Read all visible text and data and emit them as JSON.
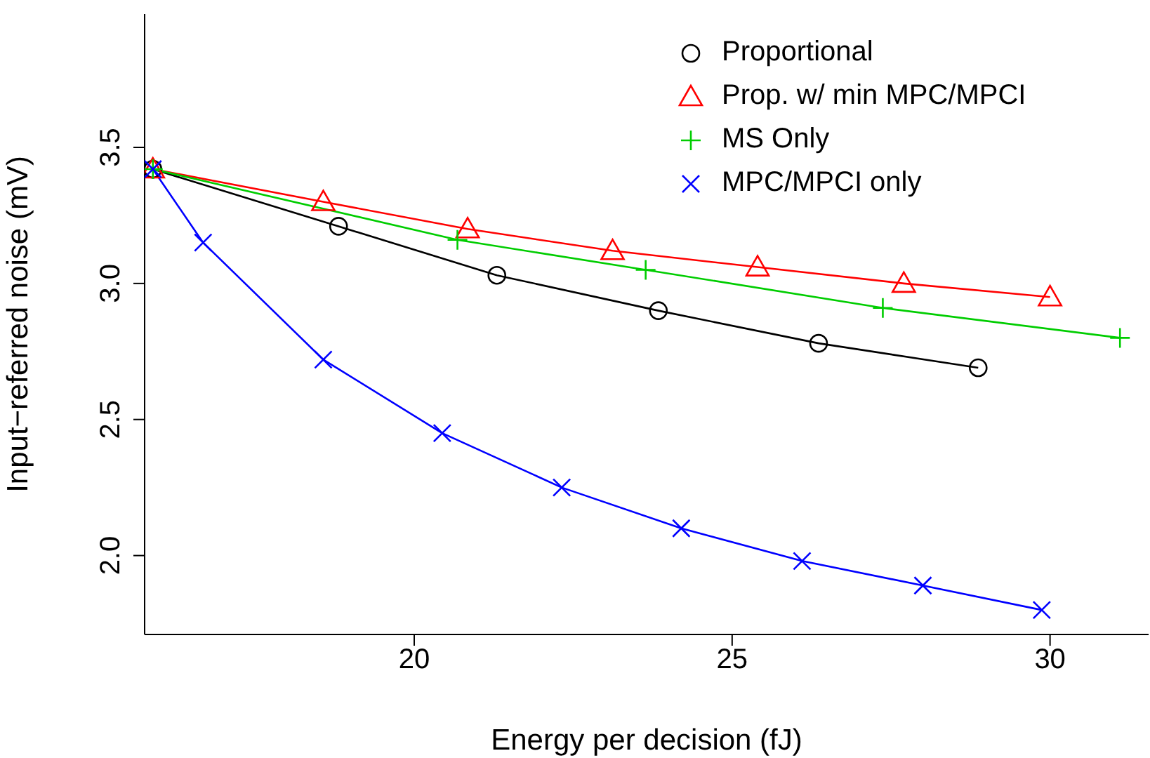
{
  "chart_data": {
    "type": "line",
    "xlabel": "Energy per decision (fJ)",
    "ylabel": "Input−referred noise (mV)",
    "xlim": [
      15.76,
      31.55
    ],
    "ylim": [
      1.71,
      3.99
    ],
    "xticks": [
      20,
      25,
      30
    ],
    "yticks": [
      {
        "value": 2,
        "label": "2.0"
      },
      2.5,
      {
        "value": 3,
        "label": "3.0"
      },
      3.5
    ],
    "legend": "top right",
    "series": [
      {
        "name": "Proportional",
        "color": "#000000",
        "marker": "circle",
        "x": [
          15.89,
          18.81,
          21.3,
          23.84,
          26.36,
          28.87
        ],
        "values": [
          3.42,
          3.21,
          3.03,
          2.9,
          2.78,
          2.69
        ]
      },
      {
        "name": "Prop. w/ min MPC/MPCI",
        "color": "#ff0000",
        "marker": "triangle",
        "x": [
          15.89,
          18.57,
          20.84,
          23.12,
          25.4,
          27.7,
          30.0
        ],
        "values": [
          3.42,
          3.3,
          3.2,
          3.12,
          3.06,
          3.0,
          2.95
        ]
      },
      {
        "name": "MS Only",
        "color": "#00cd00",
        "marker": "cross",
        "x": [
          15.89,
          20.68,
          23.64,
          27.37,
          31.1
        ],
        "values": [
          3.42,
          3.16,
          3.05,
          2.91,
          2.8
        ]
      },
      {
        "name": "MPC/MPCI only",
        "color": "#0000ff",
        "marker": "x",
        "x": [
          15.89,
          16.68,
          18.57,
          20.44,
          22.32,
          24.2,
          26.1,
          28.0,
          29.87
        ],
        "values": [
          3.42,
          3.15,
          2.72,
          2.45,
          2.25,
          2.1,
          1.98,
          1.89,
          1.8
        ]
      }
    ]
  }
}
